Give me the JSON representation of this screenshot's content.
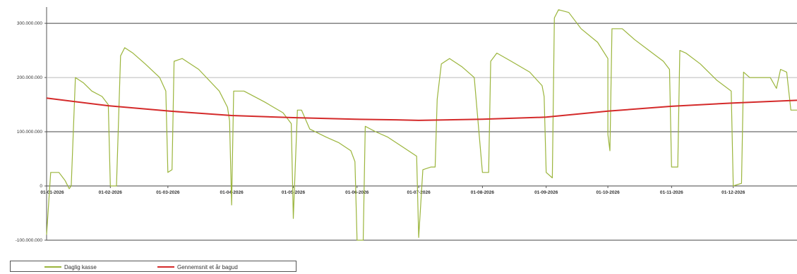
{
  "chart_data": {
    "type": "line",
    "title": "",
    "xlabel": "",
    "ylabel": "",
    "ylim": [
      -100000000,
      330000000
    ],
    "y_ticks": [
      -100000000,
      0,
      100000000,
      200000000,
      300000000
    ],
    "y_tick_labels": [
      "-100.000.000",
      "0",
      "100.000.000",
      "200.000.000",
      "300.000.000"
    ],
    "x_tick_labels": [
      "01-01-2026",
      "01-02-2026",
      "01-03-2026",
      "01-04-2026",
      "01-05-2026",
      "01-06-2026",
      "01-07-2026",
      "01-08-2026",
      "01-09-2026",
      "01-10-2026",
      "01-11-2026",
      "01-12-2026"
    ],
    "x_range_days": [
      0,
      365
    ],
    "grid": true,
    "legend_position": "bottom-left",
    "series": [
      {
        "name": "Daglig kasse",
        "color": "#9bb53c",
        "points": [
          [
            0,
            -90000000
          ],
          [
            2,
            25000000
          ],
          [
            6,
            25000000
          ],
          [
            9,
            10000000
          ],
          [
            11,
            -5000000
          ],
          [
            12,
            0
          ],
          [
            14,
            200000000
          ],
          [
            18,
            190000000
          ],
          [
            22,
            175000000
          ],
          [
            27,
            165000000
          ],
          [
            30,
            150000000
          ],
          [
            31,
            0
          ],
          [
            34,
            0
          ],
          [
            36,
            240000000
          ],
          [
            38,
            255000000
          ],
          [
            42,
            245000000
          ],
          [
            48,
            225000000
          ],
          [
            55,
            200000000
          ],
          [
            58,
            175000000
          ],
          [
            59,
            25000000
          ],
          [
            61,
            30000000
          ],
          [
            62,
            230000000
          ],
          [
            66,
            235000000
          ],
          [
            74,
            215000000
          ],
          [
            84,
            175000000
          ],
          [
            88,
            145000000
          ],
          [
            89,
            120000000
          ],
          [
            90,
            -35000000
          ],
          [
            91,
            175000000
          ],
          [
            96,
            175000000
          ],
          [
            106,
            155000000
          ],
          [
            115,
            135000000
          ],
          [
            119,
            115000000
          ],
          [
            120,
            -60000000
          ],
          [
            122,
            140000000
          ],
          [
            124,
            140000000
          ],
          [
            128,
            105000000
          ],
          [
            136,
            90000000
          ],
          [
            142,
            80000000
          ],
          [
            148,
            65000000
          ],
          [
            150,
            45000000
          ],
          [
            151,
            -100000000
          ],
          [
            154,
            -100000000
          ],
          [
            155,
            110000000
          ],
          [
            160,
            100000000
          ],
          [
            166,
            90000000
          ],
          [
            174,
            70000000
          ],
          [
            180,
            55000000
          ],
          [
            181,
            -95000000
          ],
          [
            183,
            30000000
          ],
          [
            187,
            35000000
          ],
          [
            189,
            35000000
          ],
          [
            190,
            160000000
          ],
          [
            192,
            225000000
          ],
          [
            196,
            235000000
          ],
          [
            202,
            220000000
          ],
          [
            208,
            200000000
          ],
          [
            212,
            25000000
          ],
          [
            215,
            25000000
          ],
          [
            216,
            230000000
          ],
          [
            219,
            245000000
          ],
          [
            226,
            230000000
          ],
          [
            235,
            210000000
          ],
          [
            241,
            185000000
          ],
          [
            242,
            165000000
          ],
          [
            243,
            25000000
          ],
          [
            246,
            15000000
          ],
          [
            247,
            310000000
          ],
          [
            249,
            325000000
          ],
          [
            254,
            320000000
          ],
          [
            260,
            290000000
          ],
          [
            268,
            265000000
          ],
          [
            273,
            235000000
          ],
          [
            273,
            95000000
          ],
          [
            274,
            65000000
          ],
          [
            275,
            290000000
          ],
          [
            280,
            290000000
          ],
          [
            286,
            270000000
          ],
          [
            293,
            250000000
          ],
          [
            300,
            230000000
          ],
          [
            303,
            215000000
          ],
          [
            304,
            35000000
          ],
          [
            307,
            35000000
          ],
          [
            308,
            250000000
          ],
          [
            311,
            245000000
          ],
          [
            318,
            225000000
          ],
          [
            326,
            195000000
          ],
          [
            333,
            175000000
          ],
          [
            334,
            0
          ],
          [
            338,
            5000000
          ],
          [
            339,
            210000000
          ],
          [
            342,
            200000000
          ],
          [
            352,
            200000000
          ],
          [
            355,
            180000000
          ],
          [
            357,
            215000000
          ],
          [
            360,
            210000000
          ],
          [
            362,
            140000000
          ],
          [
            365,
            140000000
          ]
        ]
      },
      {
        "name": "Gennemsnit et år bagud",
        "color": "#d42a2a",
        "points": [
          [
            0,
            162000000
          ],
          [
            30,
            148000000
          ],
          [
            60,
            138000000
          ],
          [
            90,
            130000000
          ],
          [
            120,
            126000000
          ],
          [
            150,
            123000000
          ],
          [
            170,
            122000000
          ],
          [
            181,
            121000000
          ],
          [
            212,
            123000000
          ],
          [
            243,
            127000000
          ],
          [
            273,
            138000000
          ],
          [
            304,
            147000000
          ],
          [
            334,
            153000000
          ],
          [
            365,
            158000000
          ]
        ]
      }
    ]
  }
}
